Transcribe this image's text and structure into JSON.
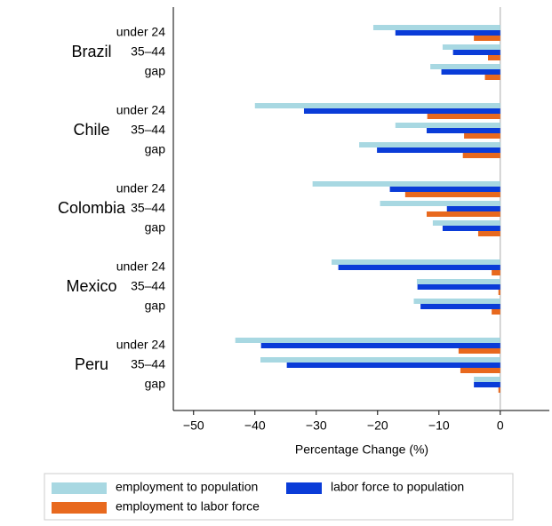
{
  "chart_data": {
    "type": "grouped-hbar",
    "groups": [
      "Brazil",
      "Chile",
      "Colombia",
      "Mexico",
      "Peru"
    ],
    "categories": [
      "under 24",
      "35–44",
      "gap",
      "under 24",
      "35–44",
      "gap",
      "under 24",
      "35–44",
      "gap",
      "under 24",
      "35–44",
      "gap",
      "under 24",
      "35–44",
      "gap"
    ],
    "series": [
      {
        "name": "employment to population",
        "color": "#a8d8e2",
        "values": [
          -20.7,
          -9.4,
          -11.4,
          -40.0,
          -17.1,
          -23.0,
          -30.6,
          -19.6,
          -11.0,
          -27.5,
          -13.6,
          -14.1,
          -43.2,
          -39.1,
          -4.3
        ]
      },
      {
        "name": "labor force to population",
        "color": "#0a3cd8",
        "values": [
          -17.1,
          -7.7,
          -9.6,
          -32.0,
          -12.0,
          -20.1,
          -18.0,
          -8.7,
          -9.4,
          -26.4,
          -13.5,
          -13.0,
          -39.0,
          -34.8,
          -4.3
        ]
      },
      {
        "name": "employment to labor force",
        "color": "#e8691e",
        "values": [
          -4.3,
          -2.0,
          -2.5,
          -11.9,
          -5.9,
          -6.1,
          -15.5,
          -12.0,
          -3.6,
          -1.4,
          -0.3,
          -1.4,
          -6.8,
          -6.5,
          -0.3
        ]
      }
    ],
    "x_label": "Percentage Change (%)",
    "xlim": [
      -53.3,
      8
    ],
    "xticks": [
      {
        "value": -50,
        "label": "−50"
      },
      {
        "value": -40,
        "label": "−40"
      },
      {
        "value": -30,
        "label": "−30"
      },
      {
        "value": -20,
        "label": "−20"
      },
      {
        "value": -10,
        "label": "−10"
      },
      0
    ],
    "legend": "bottom"
  }
}
